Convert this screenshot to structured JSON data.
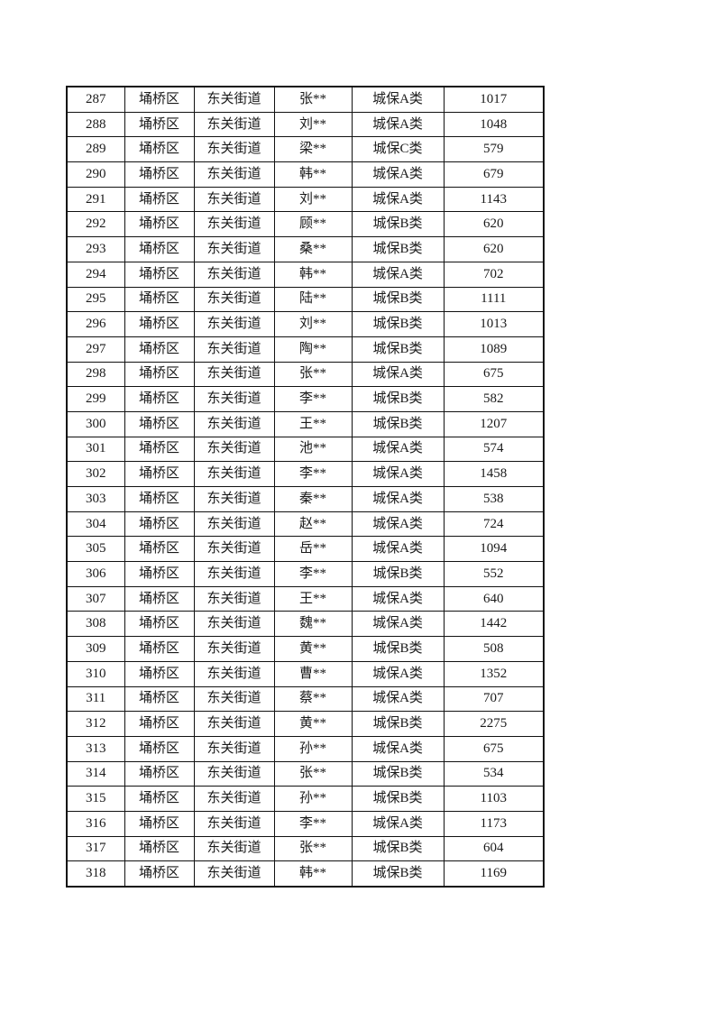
{
  "page": {
    "background_color": "#ffffff",
    "text_color": "#1a1a1a",
    "border_color": "#111111"
  },
  "table": {
    "rows": [
      [
        "287",
        "埇桥区",
        "东关街道",
        "张**",
        "城保A类",
        "1017"
      ],
      [
        "288",
        "埇桥区",
        "东关街道",
        "刘**",
        "城保A类",
        "1048"
      ],
      [
        "289",
        "埇桥区",
        "东关街道",
        "梁**",
        "城保C类",
        "579"
      ],
      [
        "290",
        "埇桥区",
        "东关街道",
        "韩**",
        "城保A类",
        "679"
      ],
      [
        "291",
        "埇桥区",
        "东关街道",
        "刘**",
        "城保A类",
        "1143"
      ],
      [
        "292",
        "埇桥区",
        "东关街道",
        "顾**",
        "城保B类",
        "620"
      ],
      [
        "293",
        "埇桥区",
        "东关街道",
        "桑**",
        "城保B类",
        "620"
      ],
      [
        "294",
        "埇桥区",
        "东关街道",
        "韩**",
        "城保A类",
        "702"
      ],
      [
        "295",
        "埇桥区",
        "东关街道",
        "陆**",
        "城保B类",
        "1111"
      ],
      [
        "296",
        "埇桥区",
        "东关街道",
        "刘**",
        "城保B类",
        "1013"
      ],
      [
        "297",
        "埇桥区",
        "东关街道",
        "陶**",
        "城保B类",
        "1089"
      ],
      [
        "298",
        "埇桥区",
        "东关街道",
        "张**",
        "城保A类",
        "675"
      ],
      [
        "299",
        "埇桥区",
        "东关街道",
        "李**",
        "城保B类",
        "582"
      ],
      [
        "300",
        "埇桥区",
        "东关街道",
        "王**",
        "城保B类",
        "1207"
      ],
      [
        "301",
        "埇桥区",
        "东关街道",
        "池**",
        "城保A类",
        "574"
      ],
      [
        "302",
        "埇桥区",
        "东关街道",
        "李**",
        "城保A类",
        "1458"
      ],
      [
        "303",
        "埇桥区",
        "东关街道",
        "秦**",
        "城保A类",
        "538"
      ],
      [
        "304",
        "埇桥区",
        "东关街道",
        "赵**",
        "城保A类",
        "724"
      ],
      [
        "305",
        "埇桥区",
        "东关街道",
        "岳**",
        "城保A类",
        "1094"
      ],
      [
        "306",
        "埇桥区",
        "东关街道",
        "李**",
        "城保B类",
        "552"
      ],
      [
        "307",
        "埇桥区",
        "东关街道",
        "王**",
        "城保A类",
        "640"
      ],
      [
        "308",
        "埇桥区",
        "东关街道",
        "魏**",
        "城保A类",
        "1442"
      ],
      [
        "309",
        "埇桥区",
        "东关街道",
        "黄**",
        "城保B类",
        "508"
      ],
      [
        "310",
        "埇桥区",
        "东关街道",
        "曹**",
        "城保A类",
        "1352"
      ],
      [
        "311",
        "埇桥区",
        "东关街道",
        "蔡**",
        "城保A类",
        "707"
      ],
      [
        "312",
        "埇桥区",
        "东关街道",
        "黄**",
        "城保B类",
        "2275"
      ],
      [
        "313",
        "埇桥区",
        "东关街道",
        "孙**",
        "城保A类",
        "675"
      ],
      [
        "314",
        "埇桥区",
        "东关街道",
        "张**",
        "城保B类",
        "534"
      ],
      [
        "315",
        "埇桥区",
        "东关街道",
        "孙**",
        "城保B类",
        "1103"
      ],
      [
        "316",
        "埇桥区",
        "东关街道",
        "李**",
        "城保A类",
        "1173"
      ],
      [
        "317",
        "埇桥区",
        "东关街道",
        "张**",
        "城保B类",
        "604"
      ],
      [
        "318",
        "埇桥区",
        "东关街道",
        "韩**",
        "城保B类",
        "1169"
      ]
    ]
  }
}
